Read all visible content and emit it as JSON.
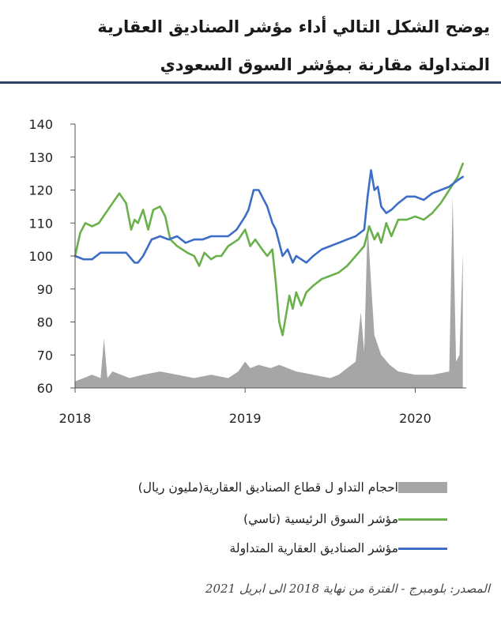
{
  "header": {
    "title_line1": "يوضح الشكل التالي أداء مؤشر الصناديق العقارية",
    "title_line2": "المتداولة مقارنة بمؤشر السوق السعودي"
  },
  "legend": {
    "volume": "احجام التداو ل قطاع الصناديق العقارية(مليون ريال)",
    "tasi": "مؤشر السوق الرئيسية (تاسي)",
    "reit": "مؤشر الصناديق العقارية المتداولة"
  },
  "source": "المصدر: بلومبرج - الفترة من نهاية 2018 الى ابريل 2021",
  "colors": {
    "volume": "#a6a6a6",
    "tasi": "#6ab04c",
    "reit": "#3d6dc7",
    "rule": "#2d3f66"
  },
  "chart_data": {
    "type": "line",
    "ylim": [
      60,
      140
    ],
    "yticks": [
      60,
      70,
      80,
      90,
      100,
      110,
      120,
      130,
      140
    ],
    "xlim": [
      2018.0,
      2020.3
    ],
    "xticks": [
      {
        "value": 2018,
        "label": "2018"
      },
      {
        "value": 2019,
        "label": "2019"
      },
      {
        "value": 2020,
        "label": "2020"
      }
    ],
    "grid": false,
    "legend_position": "bottom",
    "series": [
      {
        "key": "tasi",
        "x": [
          2018.0,
          2018.03,
          2018.06,
          2018.1,
          2018.14,
          2018.18,
          2018.22,
          2018.26,
          2018.3,
          2018.33,
          2018.35,
          2018.37,
          2018.4,
          2018.43,
          2018.46,
          2018.5,
          2018.53,
          2018.56,
          2018.6,
          2018.63,
          2018.66,
          2018.7,
          2018.73,
          2018.76,
          2018.8,
          2018.83,
          2018.86,
          2018.9,
          2018.93,
          2018.96,
          2019.0,
          2019.03,
          2019.06,
          2019.1,
          2019.13,
          2019.16,
          2019.18,
          2019.2,
          2019.22,
          2019.24,
          2019.26,
          2019.28,
          2019.3,
          2019.33,
          2019.36,
          2019.4,
          2019.45,
          2019.5,
          2019.55,
          2019.6,
          2019.65,
          2019.7,
          2019.73,
          2019.76,
          2019.78,
          2019.8,
          2019.83,
          2019.86,
          2019.9,
          2019.95,
          2020.0,
          2020.05,
          2020.1,
          2020.15,
          2020.2,
          2020.25,
          2020.28
        ],
        "values": [
          100,
          107,
          110,
          109,
          110,
          113,
          116,
          119,
          116,
          108,
          111,
          110,
          114,
          108,
          114,
          115,
          112,
          105,
          103,
          102,
          101,
          100,
          97,
          101,
          99,
          100,
          100,
          103,
          104,
          105,
          108,
          103,
          105,
          102,
          100,
          102,
          92,
          80,
          76,
          82,
          88,
          84,
          89,
          85,
          89,
          91,
          93,
          94,
          95,
          97,
          100,
          103,
          109,
          105,
          107,
          104,
          110,
          106,
          111,
          111,
          112,
          111,
          113,
          116,
          120,
          124,
          128
        ]
      },
      {
        "key": "reit",
        "x": [
          2018.0,
          2018.05,
          2018.1,
          2018.15,
          2018.2,
          2018.25,
          2018.3,
          2018.35,
          2018.37,
          2018.4,
          2018.45,
          2018.5,
          2018.55,
          2018.6,
          2018.65,
          2018.7,
          2018.75,
          2018.8,
          2018.85,
          2018.9,
          2018.95,
          2019.0,
          2019.02,
          2019.05,
          2019.08,
          2019.1,
          2019.13,
          2019.16,
          2019.18,
          2019.2,
          2019.22,
          2019.25,
          2019.28,
          2019.3,
          2019.33,
          2019.36,
          2019.4,
          2019.45,
          2019.5,
          2019.55,
          2019.6,
          2019.65,
          2019.7,
          2019.72,
          2019.74,
          2019.76,
          2019.78,
          2019.8,
          2019.83,
          2019.86,
          2019.9,
          2019.95,
          2020.0,
          2020.05,
          2020.1,
          2020.15,
          2020.2,
          2020.25,
          2020.28
        ],
        "values": [
          100,
          99,
          99,
          101,
          101,
          101,
          101,
          98,
          98,
          100,
          105,
          106,
          105,
          106,
          104,
          105,
          105,
          106,
          106,
          106,
          108,
          112,
          114,
          120,
          120,
          118,
          115,
          110,
          108,
          104,
          100,
          102,
          98,
          100,
          99,
          98,
          100,
          102,
          103,
          104,
          105,
          106,
          108,
          118,
          126,
          120,
          121,
          115,
          113,
          114,
          116,
          118,
          118,
          117,
          119,
          120,
          121,
          123,
          124
        ]
      },
      {
        "key": "volume",
        "type": "area",
        "baseline": 60,
        "x": [
          2018.0,
          2018.05,
          2018.1,
          2018.15,
          2018.17,
          2018.19,
          2018.22,
          2018.27,
          2018.32,
          2018.4,
          2018.5,
          2018.6,
          2018.7,
          2018.8,
          2018.9,
          2018.96,
          2019.0,
          2019.03,
          2019.08,
          2019.15,
          2019.2,
          2019.3,
          2019.4,
          2019.5,
          2019.55,
          2019.6,
          2019.65,
          2019.68,
          2019.7,
          2019.72,
          2019.74,
          2019.76,
          2019.78,
          2019.8,
          2019.85,
          2019.9,
          2020.0,
          2020.1,
          2020.2,
          2020.22,
          2020.24,
          2020.26,
          2020.28
        ],
        "values": [
          62,
          63,
          64,
          63,
          75,
          63,
          65,
          64,
          63,
          64,
          65,
          64,
          63,
          64,
          63,
          65,
          68,
          66,
          67,
          66,
          67,
          65,
          64,
          63,
          64,
          66,
          68,
          83,
          71,
          110,
          92,
          76,
          73,
          70,
          67,
          65,
          64,
          64,
          65,
          118,
          68,
          70,
          101
        ]
      }
    ]
  }
}
